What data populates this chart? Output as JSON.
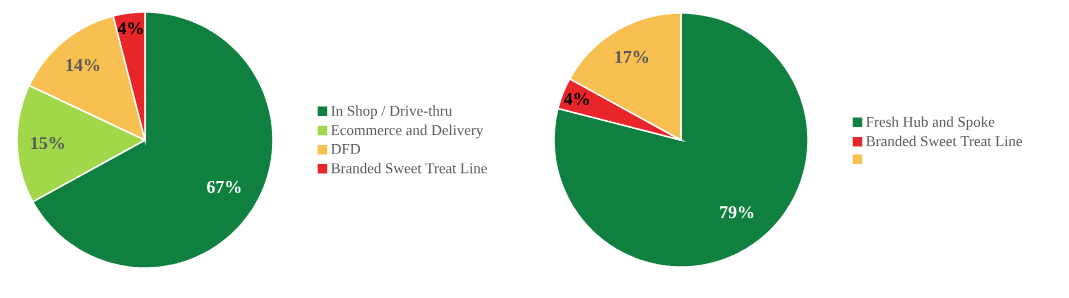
{
  "chart_data": [
    {
      "type": "pie",
      "categories": [
        "In Shop / Drive-thru",
        "Ecommerce and Delivery",
        "DFD",
        "Branded Sweet Treat Line"
      ],
      "values": [
        67,
        15,
        14,
        4
      ],
      "colors": [
        "#108040",
        "#a0d84a",
        "#f8c050",
        "#e8262a"
      ],
      "value_labels": [
        "67%",
        "15%",
        "14%",
        "4%"
      ],
      "legend": "right"
    },
    {
      "type": "pie",
      "categories": [
        "Fresh Hub and Spoke",
        "Branded Sweet Treat Line",
        null
      ],
      "values": [
        79,
        4,
        17
      ],
      "colors": [
        "#108040",
        "#e8262a",
        "#f8c050"
      ],
      "value_labels": [
        "79%",
        "4%",
        "17%"
      ],
      "legend": "right"
    }
  ]
}
